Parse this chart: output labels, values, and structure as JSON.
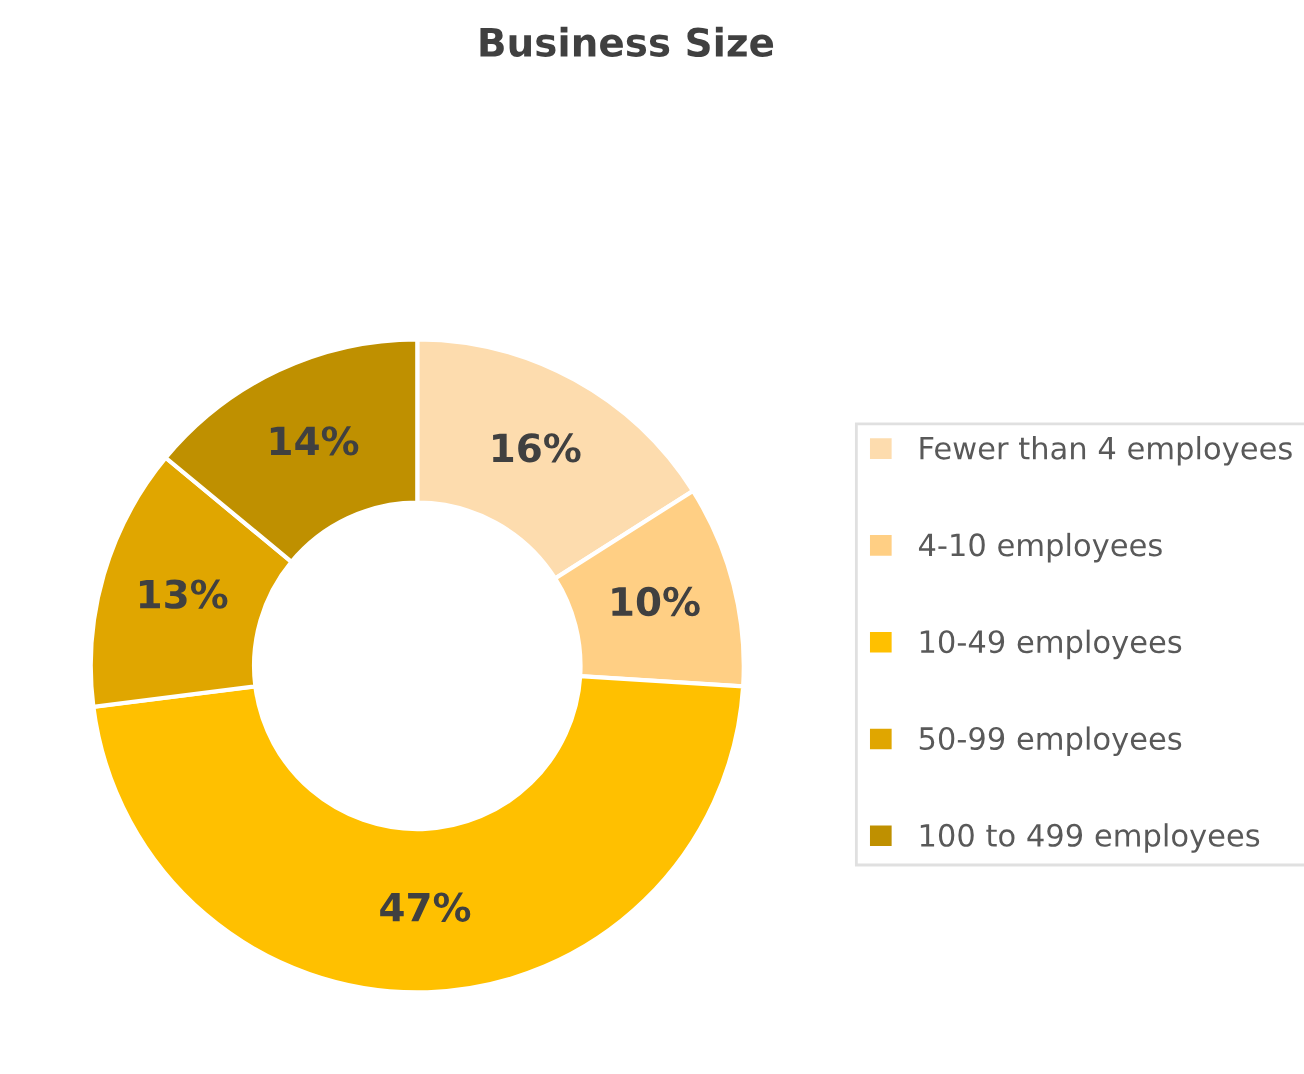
{
  "chart_data": {
    "type": "donut",
    "title": "Business Size",
    "categories": [
      "Fewer than 4 employees",
      "4-10 employees",
      "10-49 employees",
      "50-99 employees",
      "100 to 499 employees"
    ],
    "values": [
      16,
      10,
      47,
      13,
      14
    ],
    "value_labels": [
      "16%",
      "10%",
      "47%",
      "13%",
      "14%"
    ],
    "colors": [
      "#fddcae",
      "#ffcf84",
      "#ffc000",
      "#e0a600",
      "#bf9000"
    ],
    "legend": "right"
  }
}
